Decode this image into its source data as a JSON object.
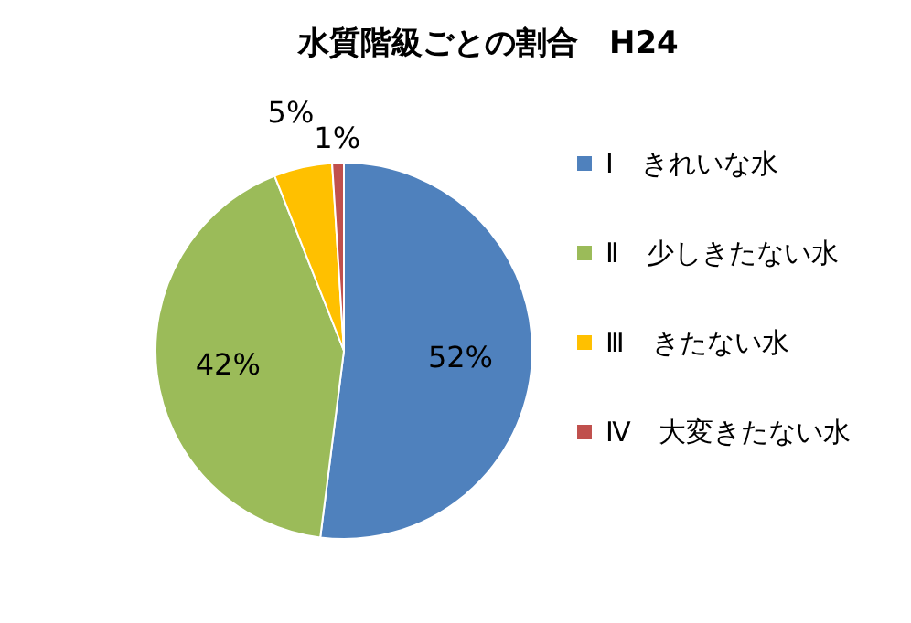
{
  "chart_data": {
    "type": "pie",
    "title": "水質階級ごとの割合　H24",
    "categories": [
      "Ⅰ　きれいな水",
      "Ⅱ　少しきたない水",
      "Ⅲ　きたない水",
      "Ⅳ　大変きたない水"
    ],
    "values": [
      52,
      42,
      5,
      1
    ],
    "colors": [
      "#4f81bd",
      "#9bbb59",
      "#ffc000",
      "#c0504d"
    ],
    "value_labels": [
      "52%",
      "42%",
      "5%",
      "1%"
    ],
    "legend": "right"
  }
}
